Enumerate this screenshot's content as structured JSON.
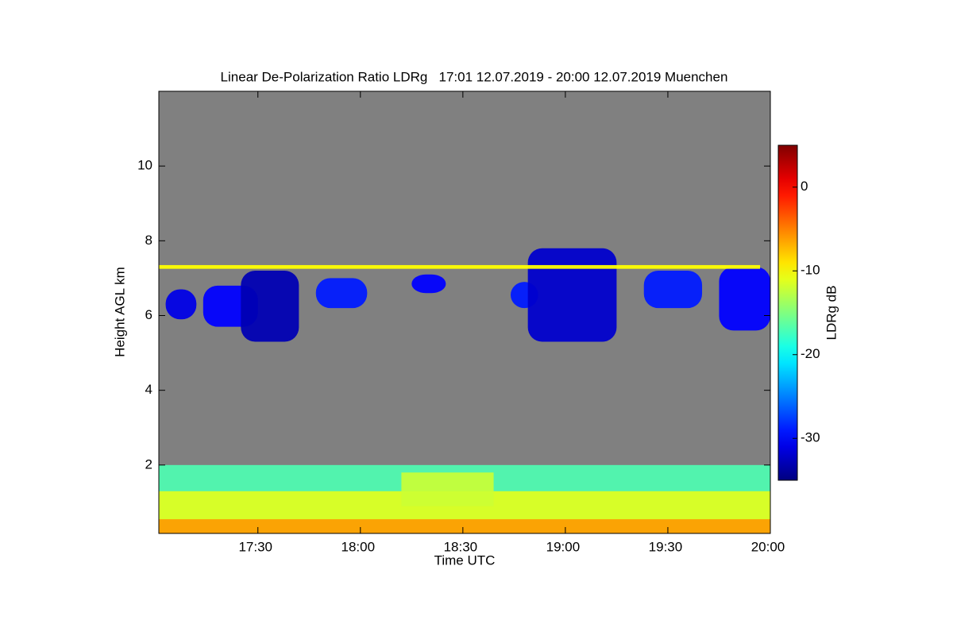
{
  "chart_data": {
    "type": "heatmap",
    "title": "Linear De-Polarization Ratio LDRg   17:01 12.07.2019 - 20:00 12.07.2019 Muenchen",
    "x_label": "Time UTC",
    "y_label": "Height AGL km",
    "colorbar_label": "LDRg dB",
    "background_color": "#808080",
    "xlim": [
      17.0167,
      20
    ],
    "ylim": [
      0.17,
      12
    ],
    "xticks": [
      {
        "value": 17.5,
        "label": "17:30"
      },
      {
        "value": 18,
        "label": "18:00"
      },
      {
        "value": 18.5,
        "label": "18:30"
      },
      {
        "value": 19,
        "label": "19:00"
      },
      {
        "value": 19.5,
        "label": "19:30"
      },
      {
        "value": 20,
        "label": "20:00"
      }
    ],
    "yticks": [
      2,
      4,
      6,
      8,
      10
    ],
    "clim": [
      -35,
      5
    ],
    "cticks": [
      -30,
      -20,
      -10,
      0
    ],
    "regions": [
      {
        "x": [
          17.0167,
          20
        ],
        "y": [
          0.17,
          2.0
        ],
        "value": -17
      },
      {
        "x": [
          17.0167,
          20
        ],
        "y": [
          0.17,
          1.3
        ],
        "value": -11
      },
      {
        "x": [
          18.2,
          18.65
        ],
        "y": [
          0.9,
          1.8
        ],
        "value": -12
      },
      {
        "x": [
          17.0167,
          20
        ],
        "y": [
          0.17,
          0.55
        ],
        "value": -6
      },
      {
        "x": [
          17.05,
          17.2
        ],
        "y": [
          5.9,
          6.7
        ],
        "value": -31
      },
      {
        "x": [
          17.233,
          17.5
        ],
        "y": [
          5.7,
          6.8
        ],
        "value": -30
      },
      {
        "x": [
          17.417,
          17.7
        ],
        "y": [
          5.3,
          7.2
        ],
        "value": -33
      },
      {
        "x": [
          17.783,
          18.033
        ],
        "y": [
          6.2,
          7.0
        ],
        "value": -29
      },
      {
        "x": [
          18.25,
          18.417
        ],
        "y": [
          6.6,
          7.1
        ],
        "value": -30
      },
      {
        "x": [
          18.733,
          18.867
        ],
        "y": [
          6.2,
          6.9
        ],
        "value": -29
      },
      {
        "x": [
          18.817,
          19.25
        ],
        "y": [
          5.3,
          7.8
        ],
        "value": -32
      },
      {
        "x": [
          19.383,
          19.667
        ],
        "y": [
          6.2,
          7.2
        ],
        "value": -29
      },
      {
        "x": [
          19.75,
          20
        ],
        "y": [
          5.6,
          7.3
        ],
        "value": -30
      },
      {
        "x": [
          17.0167,
          19.95
        ],
        "y": [
          7.25,
          7.35
        ],
        "value": -10
      }
    ]
  }
}
